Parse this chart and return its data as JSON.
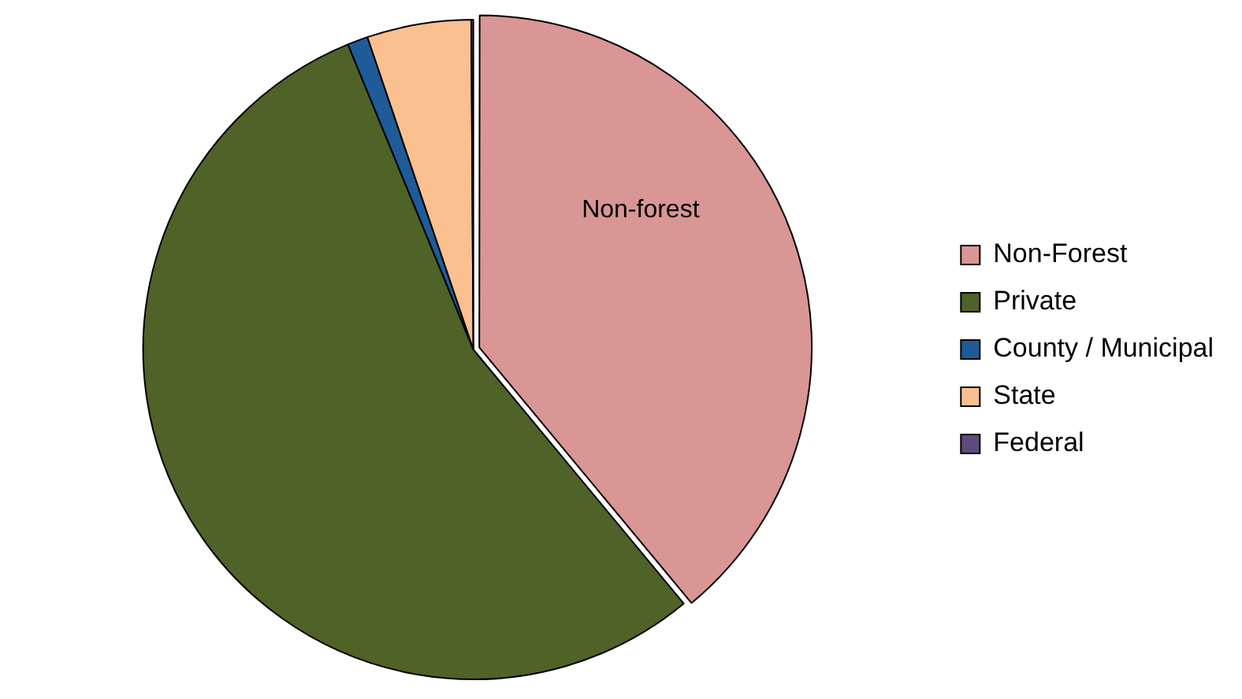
{
  "chart_data": {
    "type": "pie",
    "categories": [
      "Non-Forest",
      "Private",
      "County / Municipal",
      "State",
      "Federal"
    ],
    "values": [
      39,
      54.8,
      1,
      5.1,
      0.1
    ],
    "colors": [
      "#d99694",
      "#4f6228",
      "#1f5b99",
      "#fac090",
      "#604a7b"
    ],
    "legend": "right",
    "annotations": [
      "Non-forest"
    ]
  }
}
